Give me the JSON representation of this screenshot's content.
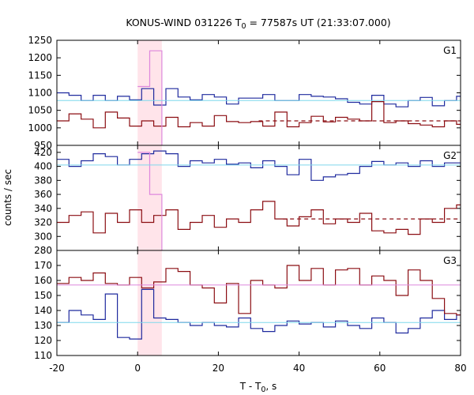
{
  "title": "KONUS-WIND 031226 T",
  "title_sub": "0",
  "title_rest": " = 77587s UT (21:33:07.000)",
  "xlabel": "T - T",
  "xlabel_sub": "0",
  "xlabel_rest": ", s",
  "ylabel": "counts / sec",
  "colors": {
    "blue": "#1f2a9e",
    "red": "#8b0d12",
    "pink": "#dd88dd",
    "cyan": "#7fd8ec",
    "shade": "#ffe4ea"
  },
  "chart_data": {
    "type": "line",
    "xlim": [
      -20,
      80
    ],
    "x_ticks": [
      -20,
      0,
      20,
      40,
      60,
      80
    ],
    "x_tick_labels": [
      "-20",
      "0",
      "20",
      "40",
      "60",
      "80"
    ],
    "shaded_interval": [
      0,
      6
    ],
    "grid": false,
    "bin_edges": [
      -20,
      -17,
      -14,
      -11,
      -8,
      -5,
      -2,
      1,
      4,
      7,
      10,
      13,
      16,
      19,
      22,
      25,
      28,
      31,
      34,
      37,
      40,
      43,
      46,
      49,
      52,
      55,
      58,
      61,
      64,
      67,
      70,
      73,
      76,
      79,
      81
    ],
    "highres_edges": [
      0,
      3,
      6
    ],
    "panels": [
      {
        "label": "G1",
        "ylim": [
          950,
          1250
        ],
        "y_ticks": [
          950,
          1000,
          1050,
          1100,
          1150,
          1200,
          1250
        ],
        "y_tick_labels": [
          "950",
          "1000",
          "1050",
          "1100",
          "1150",
          "1200",
          "1250"
        ],
        "series": [
          {
            "color": "blue",
            "values": [
              1100,
              1093,
              1078,
              1093,
              1078,
              1090,
              1080,
              1112,
              1065,
              1112,
              1088,
              1080,
              1095,
              1088,
              1068,
              1085,
              1085,
              1095,
              1078,
              1078,
              1095,
              1090,
              1088,
              1083,
              1073,
              1068,
              1093,
              1068,
              1060,
              1078,
              1087,
              1063,
              1078,
              1090
            ]
          },
          {
            "color": "red",
            "values": [
              1020,
              1040,
              1025,
              1000,
              1045,
              1028,
              1005,
              1020,
              1005,
              1030,
              1003,
              1015,
              1005,
              1035,
              1018,
              1015,
              1018,
              1005,
              1045,
              1003,
              1015,
              1033,
              1017,
              1030,
              1025,
              1020,
              1075,
              1015,
              1020,
              1012,
              1008,
              1003,
              1020,
              1010
            ]
          },
          {
            "color": "pink",
            "highres": true,
            "values": [
              1118,
              1220
            ]
          },
          {
            "color": "cyan",
            "hline": 1078
          },
          {
            "color": "red",
            "hline": 1020,
            "dashed": true,
            "x_from": 30
          }
        ]
      },
      {
        "label": "G2",
        "ylim": [
          280,
          430
        ],
        "y_ticks": [
          280,
          300,
          320,
          340,
          360,
          380,
          400,
          420
        ],
        "y_tick_labels": [
          "280",
          "300",
          "320",
          "340",
          "360",
          "380",
          "400",
          "420"
        ],
        "series": [
          {
            "color": "blue",
            "values": [
              410,
              400,
              408,
              418,
              414,
              402,
              410,
              418,
              422,
              418,
              400,
              408,
              405,
              410,
              403,
              405,
              398,
              408,
              400,
              388,
              410,
              380,
              385,
              388,
              390,
              400,
              407,
              402,
              405,
              400,
              408,
              400,
              405,
              405
            ]
          },
          {
            "color": "red",
            "values": [
              320,
              330,
              335,
              305,
              333,
              320,
              338,
              320,
              330,
              338,
              310,
              320,
              330,
              313,
              325,
              320,
              338,
              350,
              325,
              315,
              328,
              338,
              318,
              325,
              320,
              333,
              308,
              305,
              310,
              303,
              325,
              320,
              340,
              345
            ]
          },
          {
            "color": "pink",
            "highres": true,
            "values": [
              420,
              360
            ]
          },
          {
            "color": "cyan",
            "hline": 402
          },
          {
            "color": "red",
            "hline": 325,
            "dashed": true,
            "x_from": 36
          }
        ]
      },
      {
        "label": "G3",
        "ylim": [
          110,
          180
        ],
        "y_ticks": [
          110,
          120,
          130,
          140,
          150,
          160,
          170
        ],
        "y_tick_labels": [
          "110",
          "120",
          "130",
          "140",
          "150",
          "160",
          "170"
        ],
        "series": [
          {
            "color": "blue",
            "values": [
              132,
              140,
              137,
              134,
              151,
              122,
              121,
              154,
              135,
              134,
              132,
              130,
              132,
              130,
              129,
              135,
              128,
              126,
              130,
              133,
              131,
              132,
              129,
              133,
              130,
              128,
              135,
              132,
              125,
              128,
              135,
              140,
              134,
              137
            ]
          },
          {
            "color": "red",
            "values": [
              158,
              162,
              160,
              165,
              158,
              157,
              162,
              155,
              159,
              168,
              166,
              157,
              155,
              145,
              158,
              138,
              160,
              157,
              155,
              170,
              160,
              168,
              157,
              167,
              168,
              157,
              163,
              160,
              150,
              167,
              160,
              148,
              138,
              137
            ]
          },
          {
            "color": "pink",
            "hline": 157
          },
          {
            "color": "cyan",
            "hline": 132
          }
        ]
      }
    ]
  }
}
